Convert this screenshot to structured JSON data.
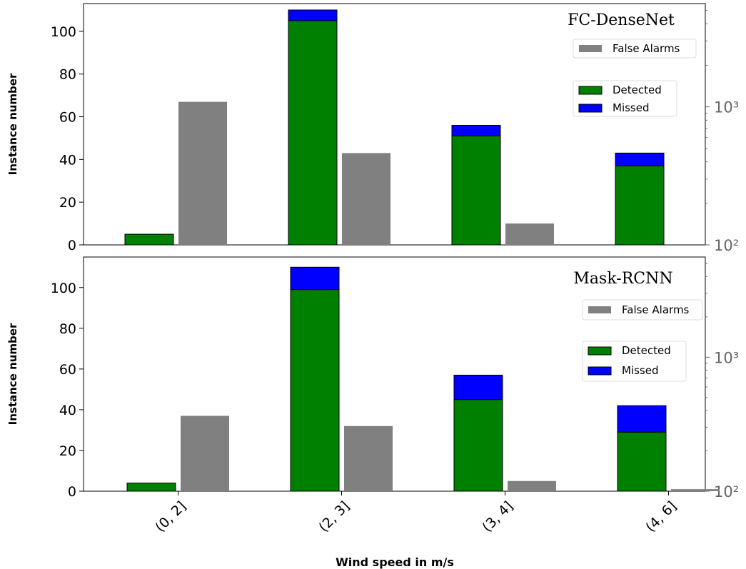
{
  "chart_data": [
    {
      "type": "bar",
      "title": "FC-DenseNet",
      "categories": [
        "(0, 2]",
        "(2, 3]",
        "(3, 4]",
        "(4, 6]"
      ],
      "ylabel": "Instance number",
      "xlabel": "",
      "ylim": [
        0,
        113
      ],
      "yticks": [
        0,
        20,
        40,
        60,
        80,
        100
      ],
      "y2_scale": "log",
      "y2lim": [
        100,
        5600
      ],
      "y2ticks": [
        100,
        1000
      ],
      "y2ticklabels": [
        "10²",
        "10³"
      ],
      "series": [
        {
          "name": "Detected",
          "stack": "main",
          "color": "#008000",
          "values": [
            5,
            105,
            51,
            37
          ]
        },
        {
          "name": "Missed",
          "stack": "main",
          "color": "#0000ff",
          "values": [
            0,
            5,
            5,
            6
          ]
        },
        {
          "name": "False Alarms",
          "stack": "fa",
          "color": "#808080",
          "values": [
            67,
            43,
            10,
            0
          ]
        }
      ],
      "legend": [
        {
          "label": "False Alarms",
          "color": "#808080"
        },
        {
          "label": "Detected",
          "color": "#008000"
        },
        {
          "label": "Missed",
          "color": "#0000ff"
        }
      ],
      "legend_position": "right"
    },
    {
      "type": "bar",
      "title": "Mask-RCNN",
      "categories": [
        "(0, 2]",
        "(2, 3]",
        "(3, 4]",
        "(4, 6]"
      ],
      "ylabel": "Instance number",
      "xlabel": "Wind speed in m/s",
      "ylim": [
        0,
        115
      ],
      "yticks": [
        0,
        20,
        40,
        60,
        80,
        100
      ],
      "y2_scale": "log",
      "y2lim": [
        100,
        5600
      ],
      "y2ticks": [
        100,
        1000
      ],
      "y2ticklabels": [
        "10²",
        "10³"
      ],
      "series": [
        {
          "name": "Detected",
          "stack": "main",
          "color": "#008000",
          "values": [
            4,
            99,
            45,
            29
          ]
        },
        {
          "name": "Missed",
          "stack": "main",
          "color": "#0000ff",
          "values": [
            0,
            11,
            12,
            13
          ]
        },
        {
          "name": "False Alarms",
          "stack": "fa",
          "color": "#808080",
          "values": [
            37,
            32,
            5,
            1
          ]
        }
      ],
      "legend": [
        {
          "label": "False Alarms",
          "color": "#808080"
        },
        {
          "label": "Detected",
          "color": "#008000"
        },
        {
          "label": "Missed",
          "color": "#0000ff"
        }
      ],
      "legend_position": "right"
    }
  ]
}
